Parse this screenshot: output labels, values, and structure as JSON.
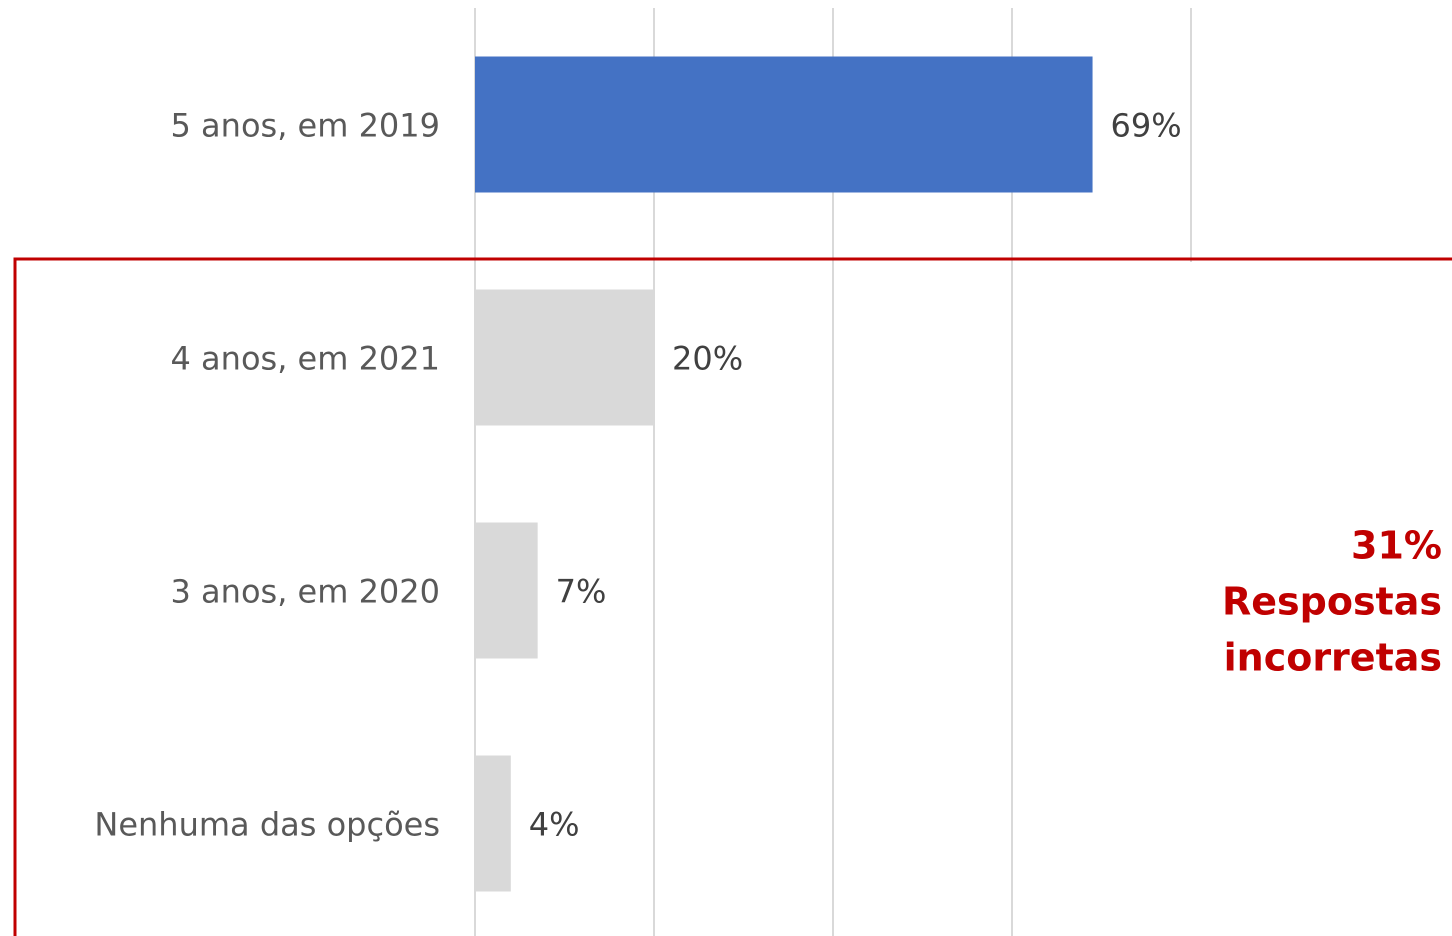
{
  "chart_data": {
    "type": "barh",
    "categories": [
      "5 anos, em 2019",
      "4 anos, em 2021",
      "3 anos, em 2020",
      "Nenhuma das opções"
    ],
    "values": [
      69,
      20,
      7,
      4
    ],
    "value_labels": [
      "69%",
      "20%",
      "7%",
      "4%"
    ],
    "colors": [
      "#4472c4",
      "#d9d9d9",
      "#d9d9d9",
      "#d9d9d9"
    ],
    "xlim": [
      0,
      80
    ],
    "xticks": [
      0,
      20,
      40,
      60,
      80
    ],
    "grid": true,
    "annotation": [
      "31%",
      "Respostas",
      "incorretas"
    ]
  }
}
